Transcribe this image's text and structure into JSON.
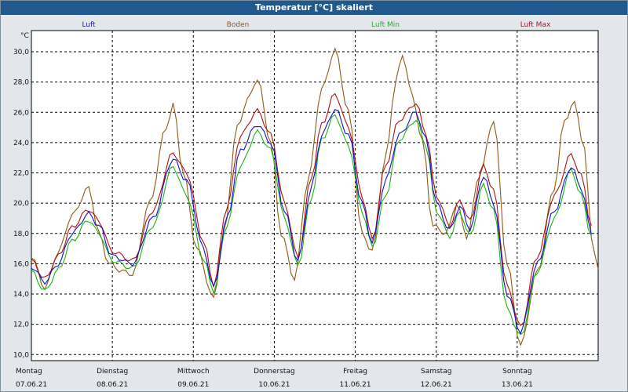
{
  "chart_data": {
    "type": "line",
    "title": "Temperatur [°C] skaliert",
    "ylabel": "°C",
    "ylim": [
      9.6,
      31.4
    ],
    "yticks": [
      "10,0",
      "12,0",
      "14,0",
      "16,0",
      "18,0",
      "20,0",
      "22,0",
      "24,0",
      "26,0",
      "28,0",
      "30,0"
    ],
    "xlim": [
      0,
      168
    ],
    "days": [
      {
        "weekday": "Montag",
        "date": "07.06.21"
      },
      {
        "weekday": "Dienstag",
        "date": "08.06.21"
      },
      {
        "weekday": "Mittwoch",
        "date": "09.06.21"
      },
      {
        "weekday": "Donnerstag",
        "date": "10.06.21"
      },
      {
        "weekday": "Freitag",
        "date": "11.06.21"
      },
      {
        "weekday": "Samstag",
        "date": "12.06.21"
      },
      {
        "weekday": "Sonntag",
        "date": "13.06.21"
      }
    ],
    "grid": true,
    "legend_position": "top",
    "series": [
      {
        "name": "Luft",
        "color": "#1010c8",
        "key": "luft"
      },
      {
        "name": "Boden",
        "color": "#8b5a14",
        "key": "boden"
      },
      {
        "name": "Luft Min",
        "color": "#18b418",
        "key": "luftmin"
      },
      {
        "name": "Luft Max",
        "color": "#b01010",
        "key": "luftmax"
      }
    ],
    "anchors": {
      "luft": [
        [
          0,
          15.8
        ],
        [
          4,
          14.8
        ],
        [
          8,
          16
        ],
        [
          12,
          18
        ],
        [
          17,
          19.3
        ],
        [
          20,
          18.5
        ],
        [
          24,
          16.5
        ],
        [
          30,
          16
        ],
        [
          36,
          19
        ],
        [
          42,
          22.9
        ],
        [
          46,
          21.5
        ],
        [
          51,
          17
        ],
        [
          54,
          14.4
        ],
        [
          58,
          19
        ],
        [
          62,
          23.5
        ],
        [
          67,
          25.2
        ],
        [
          71,
          24
        ],
        [
          75,
          19.5
        ],
        [
          79,
          16.2
        ],
        [
          83,
          21
        ],
        [
          86,
          24.5
        ],
        [
          90,
          26.2
        ],
        [
          94,
          24.5
        ],
        [
          98,
          20
        ],
        [
          101,
          17.4
        ],
        [
          105,
          21.5
        ],
        [
          109,
          24.5
        ],
        [
          114,
          26
        ],
        [
          117,
          24.2
        ],
        [
          120,
          20
        ],
        [
          124,
          18.2
        ],
        [
          127,
          19.8
        ],
        [
          130,
          18.3
        ],
        [
          134,
          21.8
        ],
        [
          137,
          20
        ],
        [
          141,
          14
        ],
        [
          145,
          11.5
        ],
        [
          150,
          16
        ],
        [
          155,
          19.5
        ],
        [
          160,
          22.4
        ],
        [
          163,
          21
        ],
        [
          166,
          18
        ]
      ],
      "boden": [
        [
          0,
          16.5
        ],
        [
          4,
          14.4
        ],
        [
          8,
          16.8
        ],
        [
          12,
          19.2
        ],
        [
          17,
          21
        ],
        [
          20,
          18
        ],
        [
          23,
          16
        ],
        [
          27,
          15.5
        ],
        [
          30,
          15.3
        ],
        [
          35,
          20
        ],
        [
          40,
          25
        ],
        [
          42,
          26.5
        ],
        [
          45,
          22
        ],
        [
          49,
          17
        ],
        [
          54,
          13.7
        ],
        [
          57,
          18
        ],
        [
          61,
          25
        ],
        [
          64,
          26.8
        ],
        [
          67,
          28.2
        ],
        [
          71,
          24
        ],
        [
          74,
          18
        ],
        [
          78,
          15
        ],
        [
          82,
          21.5
        ],
        [
          86,
          27.5
        ],
        [
          90,
          30.1
        ],
        [
          94,
          26
        ],
        [
          98,
          18
        ],
        [
          101,
          16.8
        ],
        [
          105,
          23
        ],
        [
          108,
          28
        ],
        [
          110,
          29.8
        ],
        [
          113,
          27
        ],
        [
          116,
          24
        ],
        [
          119,
          18.5
        ],
        [
          123,
          18
        ],
        [
          126,
          20
        ],
        [
          129,
          17.8
        ],
        [
          133,
          22
        ],
        [
          137,
          25.5
        ],
        [
          141,
          16
        ],
        [
          145,
          10.6
        ],
        [
          150,
          15.5
        ],
        [
          155,
          21
        ],
        [
          158,
          25.5
        ],
        [
          161,
          26.6
        ],
        [
          164,
          23.5
        ],
        [
          166,
          17.8
        ],
        [
          168,
          15.5
        ]
      ],
      "luftmin": [
        [
          0,
          15.5
        ],
        [
          4,
          14.2
        ],
        [
          8,
          15.6
        ],
        [
          12,
          17.5
        ],
        [
          17,
          18.9
        ],
        [
          20,
          18
        ],
        [
          24,
          16.2
        ],
        [
          30,
          15.7
        ],
        [
          36,
          18.5
        ],
        [
          42,
          22.4
        ],
        [
          46,
          20.5
        ],
        [
          51,
          16.3
        ],
        [
          54,
          14.2
        ],
        [
          58,
          18.6
        ],
        [
          62,
          22.5
        ],
        [
          67,
          24.7
        ],
        [
          71,
          23.5
        ],
        [
          75,
          19
        ],
        [
          79,
          15.9
        ],
        [
          83,
          20.3
        ],
        [
          86,
          24.2
        ],
        [
          90,
          25.8
        ],
        [
          94,
          23.8
        ],
        [
          98,
          19.5
        ],
        [
          101,
          17.1
        ],
        [
          105,
          20.5
        ],
        [
          109,
          24.2
        ],
        [
          114,
          25.5
        ],
        [
          117,
          23.8
        ],
        [
          120,
          19.5
        ],
        [
          124,
          17.8
        ],
        [
          127,
          19.4
        ],
        [
          130,
          17.8
        ],
        [
          134,
          21.2
        ],
        [
          137,
          19.5
        ],
        [
          141,
          13
        ],
        [
          145,
          11.2
        ],
        [
          150,
          15.5
        ],
        [
          155,
          19
        ],
        [
          160,
          22.2
        ],
        [
          163,
          20.5
        ],
        [
          166,
          17.8
        ]
      ],
      "luftmax": [
        [
          0,
          16.2
        ],
        [
          4,
          15
        ],
        [
          8,
          16.5
        ],
        [
          12,
          18.4
        ],
        [
          17,
          19.6
        ],
        [
          20,
          18.8
        ],
        [
          24,
          16.8
        ],
        [
          30,
          16.2
        ],
        [
          36,
          19.5
        ],
        [
          42,
          23.3
        ],
        [
          46,
          22
        ],
        [
          51,
          17.5
        ],
        [
          54,
          14.6
        ],
        [
          58,
          19.8
        ],
        [
          62,
          24.5
        ],
        [
          67,
          26.1
        ],
        [
          71,
          24.5
        ],
        [
          75,
          20
        ],
        [
          79,
          16.4
        ],
        [
          83,
          21.7
        ],
        [
          86,
          25.2
        ],
        [
          90,
          27.2
        ],
        [
          94,
          25
        ],
        [
          98,
          20.5
        ],
        [
          101,
          17.6
        ],
        [
          105,
          22.5
        ],
        [
          109,
          25.5
        ],
        [
          114,
          26.6
        ],
        [
          117,
          24.6
        ],
        [
          120,
          20.5
        ],
        [
          124,
          18.5
        ],
        [
          127,
          20.2
        ],
        [
          130,
          18.8
        ],
        [
          134,
          22.5
        ],
        [
          137,
          20.8
        ],
        [
          141,
          14.5
        ],
        [
          145,
          11.8
        ],
        [
          150,
          16.5
        ],
        [
          155,
          20.5
        ],
        [
          160,
          23.2
        ],
        [
          163,
          21.8
        ],
        [
          166,
          18.5
        ]
      ]
    }
  }
}
